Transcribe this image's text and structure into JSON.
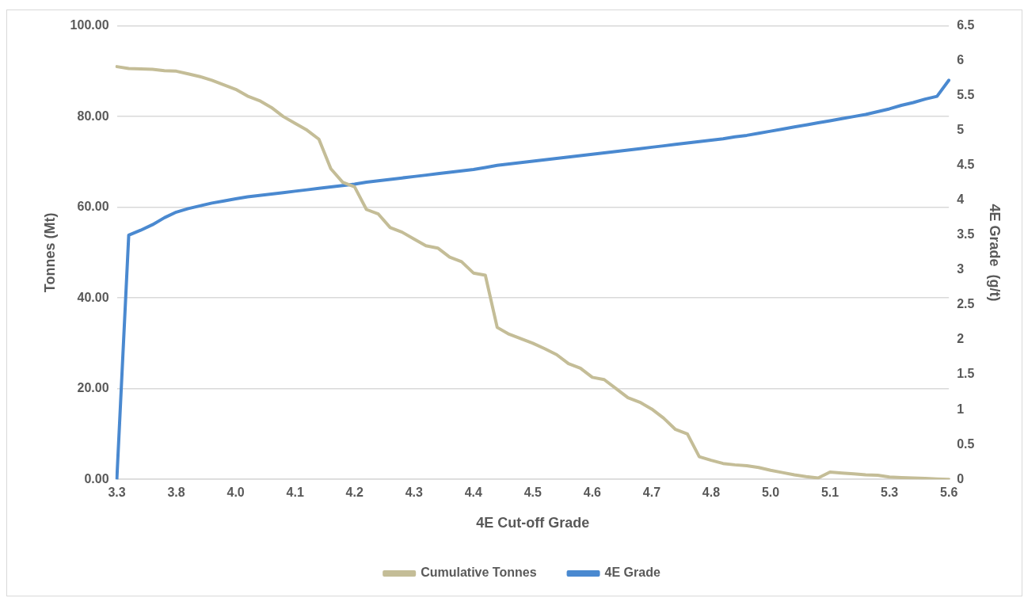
{
  "chart_data": {
    "type": "line",
    "xlabel": "4E Cut-off Grade",
    "ylabel": "Tonnes (Mt)",
    "y2label": "4E Grade  (g/t)",
    "categories": [
      "3.3",
      null,
      null,
      null,
      null,
      "3.8",
      null,
      null,
      null,
      null,
      "4.0",
      null,
      null,
      null,
      null,
      "4.1",
      null,
      null,
      null,
      null,
      "4.2",
      null,
      null,
      null,
      null,
      "4.3",
      null,
      null,
      null,
      null,
      "4.4",
      null,
      null,
      null,
      null,
      "4.5",
      null,
      null,
      null,
      null,
      "4.6",
      null,
      null,
      null,
      null,
      "4.7",
      null,
      null,
      null,
      null,
      "4.8",
      null,
      null,
      null,
      null,
      "5.0",
      null,
      null,
      null,
      null,
      "5.1",
      null,
      null,
      null,
      null,
      "5.3",
      null,
      null,
      null,
      null,
      "5.6"
    ],
    "series": [
      {
        "name": "Cumulative Tonnes",
        "color": "#c4bd97",
        "values": [
          91,
          90.6,
          90.5,
          90.4,
          90.1,
          90,
          89.4,
          88.8,
          88,
          87,
          86,
          84.5,
          83.5,
          82,
          80,
          78.5,
          77,
          75,
          68.5,
          65.5,
          64.5,
          59.5,
          58.5,
          55.5,
          54.5,
          53,
          51.5,
          51,
          49,
          48,
          45.5,
          45,
          33.5,
          32,
          31,
          30,
          28.8,
          27.5,
          25.5,
          24.5,
          22.5,
          22,
          20,
          18,
          17,
          15.5,
          13.5,
          11,
          10,
          5,
          4.2,
          3.5,
          3.2,
          3,
          2.6,
          2,
          1.5,
          1,
          0.6,
          0.3,
          1.6,
          1.4,
          1.2,
          1,
          0.9,
          0.5,
          0.4,
          0.3,
          0.2,
          0.1,
          0
        ]
      },
      {
        "name": "4E Grade",
        "color": "#4a89d0",
        "axis": "y2",
        "values": [
          0,
          3.5,
          3.57,
          3.65,
          3.75,
          3.83,
          3.88,
          3.92,
          3.96,
          3.99,
          4.02,
          4.05,
          4.07,
          4.09,
          4.11,
          4.13,
          4.15,
          4.17,
          4.19,
          4.21,
          4.23,
          4.26,
          4.28,
          4.3,
          4.32,
          4.34,
          4.36,
          4.38,
          4.4,
          4.42,
          4.44,
          4.47,
          4.5,
          4.52,
          4.54,
          4.56,
          4.58,
          4.6,
          4.62,
          4.64,
          4.66,
          4.68,
          4.7,
          4.72,
          4.74,
          4.76,
          4.78,
          4.8,
          4.82,
          4.84,
          4.86,
          4.88,
          4.91,
          4.93,
          4.96,
          4.99,
          5.02,
          5.05,
          5.08,
          5.11,
          5.14,
          5.17,
          5.2,
          5.23,
          5.27,
          5.31,
          5.36,
          5.4,
          5.45,
          5.49,
          5.72
        ]
      }
    ],
    "ylim": [
      0,
      100
    ],
    "yticks": [
      {
        "value": 0,
        "label": "0.00"
      },
      {
        "value": 20,
        "label": "20.00"
      },
      {
        "value": 40,
        "label": "40.00"
      },
      {
        "value": 60,
        "label": "60.00"
      },
      {
        "value": 80,
        "label": "80.00"
      },
      {
        "value": 100,
        "label": "100.00"
      }
    ],
    "y2lim": [
      0,
      6.5
    ],
    "y2ticks": [
      0,
      0.5,
      1,
      1.5,
      2,
      2.5,
      3,
      3.5,
      4,
      4.5,
      5,
      5.5,
      6,
      6.5
    ],
    "grid": "y",
    "legend": "bottom",
    "marker": "none",
    "line_style": "solid"
  }
}
